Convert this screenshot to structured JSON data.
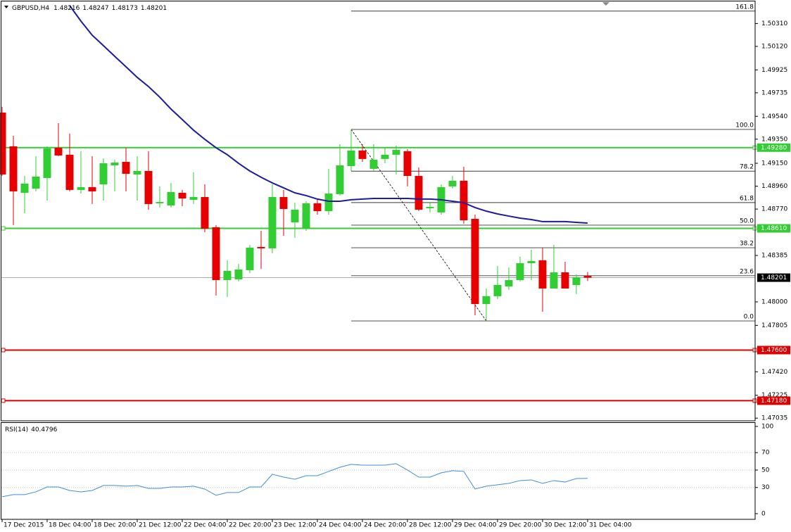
{
  "chart_data": {
    "type": "candlestick",
    "title": "GBPUSD,H4",
    "categories": [
      "17 Dec 2015",
      null,
      null,
      null,
      "18 Dec 04:00",
      null,
      null,
      null,
      "18 Dec 20:00",
      null,
      null,
      null,
      "21 Dec 12:00",
      null,
      null,
      null,
      "22 Dec 04:00",
      null,
      null,
      null,
      "22 Dec 20:00",
      null,
      null,
      null,
      "23 Dec 12:00",
      null,
      null,
      null,
      "24 Dec 04:00",
      null,
      null,
      null,
      "24 Dec 20:00",
      null,
      null,
      null,
      "28 Dec 12:00",
      null,
      null,
      null,
      "29 Dec 04:00",
      null,
      null,
      null,
      "29 Dec 20:00",
      null,
      null,
      null,
      "30 Dec 12:00",
      null,
      null,
      null,
      "31 Dec 04:00"
    ],
    "open": [
      1.49571,
      1.49291,
      1.48905,
      1.4894,
      1.49028,
      1.49279,
      1.49221,
      1.48929,
      1.48952,
      1.48975,
      1.49133,
      1.49162,
      1.49057,
      1.49086,
      1.48818,
      1.488,
      1.48905,
      1.48847,
      1.4887,
      1.48619,
      1.48181,
      1.48187,
      1.48263,
      1.48456,
      1.48444,
      1.4887,
      1.4866,
      1.48607,
      1.48818,
      1.48753,
      1.48894,
      1.49127,
      1.49256,
      1.49104,
      1.49186,
      1.49221,
      1.4925,
      1.49045,
      1.48777,
      1.48742,
      1.48958,
      1.49005,
      1.48689,
      1.47982,
      1.48047,
      1.48128,
      1.48181,
      1.48321,
      1.48345,
      1.48111,
      1.48245,
      1.4814,
      1.48216
    ],
    "high": [
      1.49618,
      1.49378,
      1.49045,
      1.49209,
      1.49291,
      1.49483,
      1.49396,
      1.4925,
      1.49209,
      1.49191,
      1.4918,
      1.49279,
      1.49209,
      1.4925,
      1.48958,
      1.48987,
      1.48929,
      1.49075,
      1.48975,
      1.48637,
      1.48345,
      1.48315,
      1.48473,
      1.4859,
      1.48975,
      1.48929,
      1.48823,
      1.48835,
      1.48858,
      1.49104,
      1.49308,
      1.49431,
      1.49308,
      1.49308,
      1.49279,
      1.49297,
      1.49267,
      1.49115,
      1.48829,
      1.48975,
      1.49045,
      1.49121,
      1.48724,
      1.48111,
      1.48298,
      1.48286,
      1.48374,
      1.48432,
      1.4845,
      1.48473,
      1.48333,
      1.48228,
      1.48247
    ],
    "low": [
      1.49045,
      1.48637,
      1.48736,
      1.48917,
      1.48841,
      1.49209,
      1.48917,
      1.48899,
      1.48812,
      1.48841,
      1.48917,
      1.48917,
      1.48841,
      1.48765,
      1.48783,
      1.48783,
      1.48794,
      1.48812,
      1.48578,
      1.48053,
      1.48041,
      1.48169,
      1.48239,
      1.48274,
      1.48403,
      1.48549,
      1.48531,
      1.4859,
      1.48724,
      1.48724,
      1.48882,
      1.49086,
      1.49162,
      1.49086,
      1.4915,
      1.49057,
      1.48958,
      1.48753,
      1.48742,
      1.48724,
      1.4894,
      1.48648,
      1.47889,
      1.47842,
      1.48023,
      1.48099,
      1.48169,
      1.48181,
      1.47918,
      1.48111,
      1.48111,
      1.48064,
      1.48173
    ],
    "close": [
      1.49057,
      1.48917,
      1.48981,
      1.4904,
      1.49273,
      1.49215,
      1.48929,
      1.48952,
      1.48917,
      1.4915,
      1.49156,
      1.49063,
      1.49086,
      1.48812,
      1.48829,
      1.48911,
      1.48858,
      1.4887,
      1.48607,
      1.48181,
      1.48257,
      1.48269,
      1.4845,
      1.48444,
      1.4887,
      1.48771,
      1.48765,
      1.48818,
      1.48753,
      1.48899,
      1.49133,
      1.49256,
      1.49186,
      1.4918,
      1.49221,
      1.49261,
      1.49045,
      1.48765,
      1.48788,
      1.48952,
      1.49005,
      1.48677,
      1.47982,
      1.48047,
      1.4814,
      1.48181,
      1.48321,
      1.48339,
      1.48111,
      1.48245,
      1.48111,
      1.48204,
      1.48201
    ],
    "up_color": "#32cd32",
    "down_color": "#e60000",
    "ma": {
      "color": "#1c1c9c",
      "values": [
        null,
        null,
        null,
        null,
        null,
        null,
        1.50459,
        1.5033,
        1.50213,
        1.50126,
        1.50038,
        1.49951,
        1.49863,
        1.49787,
        1.49699,
        1.496,
        1.49513,
        1.49425,
        1.49349,
        1.49279,
        1.49221,
        1.4915,
        1.49086,
        1.49034,
        1.48987,
        1.48946,
        1.48905,
        1.48882,
        1.48853,
        1.48835,
        1.48835,
        1.48847,
        1.48853,
        1.48858,
        1.48858,
        1.48858,
        1.48858,
        1.48853,
        1.48853,
        1.48847,
        1.48835,
        1.48823,
        1.48783,
        1.48753,
        1.4873,
        1.48712,
        1.48695,
        1.48683,
        1.48666,
        1.48666,
        1.48666,
        1.4866,
        1.48654
      ]
    },
    "hlines": [
      {
        "value": 1.4928,
        "label": "1.49280",
        "color": "#33cc33"
      },
      {
        "value": 1.4861,
        "label": "1.48610",
        "color": "#33cc33"
      },
      {
        "value": 1.476,
        "label": "1.47600",
        "color": "#dd0000"
      },
      {
        "value": 1.4718,
        "label": "1.47180",
        "color": "#dd0000"
      }
    ],
    "fib": {
      "high": 1.49431,
      "low": 1.47842,
      "color": "#3a3a3a",
      "levels": [
        {
          "value": 0,
          "label": "0.0"
        },
        23.6,
        38.2,
        {
          "value": 50,
          "label": "50.0"
        },
        61.8,
        78.2,
        {
          "value": 100,
          "label": "100.0"
        },
        161.8
      ]
    },
    "ylim": [
      1.47013,
      1.50505
    ],
    "yticks": [
      {
        "value": 1.5031,
        "label": "1.50310"
      },
      {
        "value": 1.5012,
        "label": "1.50120"
      },
      1.49925,
      1.49735,
      {
        "value": 1.4954,
        "label": "1.49540"
      },
      {
        "value": 1.4935,
        "label": "1.49350"
      },
      {
        "value": 1.4915,
        "label": "1.49150"
      },
      {
        "value": 1.4896,
        "label": "1.48960"
      },
      {
        "value": 1.4877,
        "label": "1.48770"
      },
      1.48385,
      {
        "value": 1.48,
        "label": "1.48000"
      },
      1.47805,
      {
        "value": 1.4742,
        "label": "1.47420"
      },
      1.47225,
      1.47035
    ],
    "rsi": {
      "type": "line",
      "title": "RSI(14)",
      "color": "#3d8fd8",
      "values": [
        19.4,
        21.8,
        21.8,
        25.0,
        30.6,
        30.6,
        26.6,
        25.0,
        26.6,
        32.3,
        32.3,
        31.5,
        32.3,
        29.0,
        29.0,
        30.6,
        30.6,
        31.5,
        28.2,
        21.0,
        24.2,
        24.2,
        30.6,
        30.6,
        45.2,
        41.9,
        39.5,
        43.5,
        43.5,
        48.4,
        53.2,
        56.5,
        55.6,
        55.6,
        55.6,
        57.3,
        50.0,
        41.9,
        41.9,
        46.8,
        49.2,
        48.4,
        28.2,
        31.5,
        33.1,
        34.7,
        37.9,
        38.7,
        34.7,
        37.9,
        36.3,
        40.3,
        40.4796
      ],
      "ylim": [
        -6.5,
        104.8
      ],
      "yticks": [
        100,
        70,
        50,
        30,
        0
      ],
      "levels": [
        70,
        50,
        30
      ]
    }
  }
}
